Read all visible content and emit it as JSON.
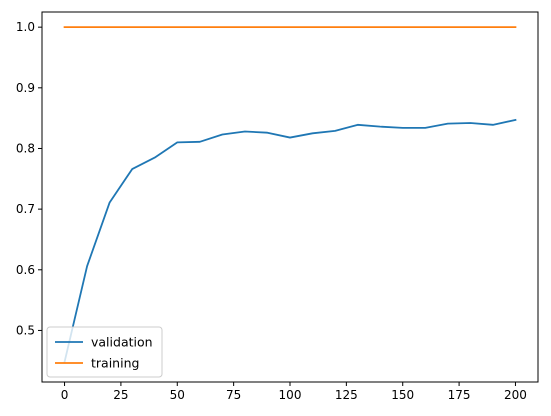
{
  "chart_data": {
    "type": "line",
    "xlim": [
      -10,
      210
    ],
    "ylim": [
      0.415,
      1.025
    ],
    "xticks": [
      0,
      25,
      50,
      75,
      100,
      125,
      150,
      175,
      200
    ],
    "yticks": [
      0.5,
      0.6,
      0.7,
      0.8,
      0.9,
      1.0
    ],
    "xtick_labels": [
      "0",
      "25",
      "50",
      "75",
      "100",
      "125",
      "150",
      "175",
      "200"
    ],
    "ytick_labels": [
      "0.5",
      "0.6",
      "0.7",
      "0.8",
      "0.9",
      "1.0"
    ],
    "grid": false,
    "legend": {
      "position": "lower-left",
      "entries": [
        "validation",
        "training"
      ]
    },
    "series": [
      {
        "name": "validation",
        "color": "#1f77b4",
        "x": [
          0,
          10,
          20,
          30,
          40,
          50,
          60,
          70,
          80,
          90,
          100,
          110,
          120,
          130,
          140,
          150,
          160,
          170,
          180,
          190,
          200
        ],
        "y": [
          0.448,
          0.606,
          0.711,
          0.766,
          0.785,
          0.81,
          0.811,
          0.823,
          0.828,
          0.826,
          0.818,
          0.825,
          0.829,
          0.839,
          0.836,
          0.834,
          0.834,
          0.841,
          0.842,
          0.839,
          0.847
        ]
      },
      {
        "name": "training",
        "color": "#ff7f0e",
        "x": [
          0,
          10,
          20,
          30,
          40,
          50,
          60,
          70,
          80,
          90,
          100,
          110,
          120,
          130,
          140,
          150,
          160,
          170,
          180,
          190,
          200
        ],
        "y": [
          1.0,
          1.0,
          1.0,
          1.0,
          1.0,
          1.0,
          1.0,
          1.0,
          1.0,
          1.0,
          1.0,
          1.0,
          1.0,
          1.0,
          1.0,
          1.0,
          1.0,
          1.0,
          1.0,
          1.0,
          1.0
        ]
      }
    ]
  }
}
